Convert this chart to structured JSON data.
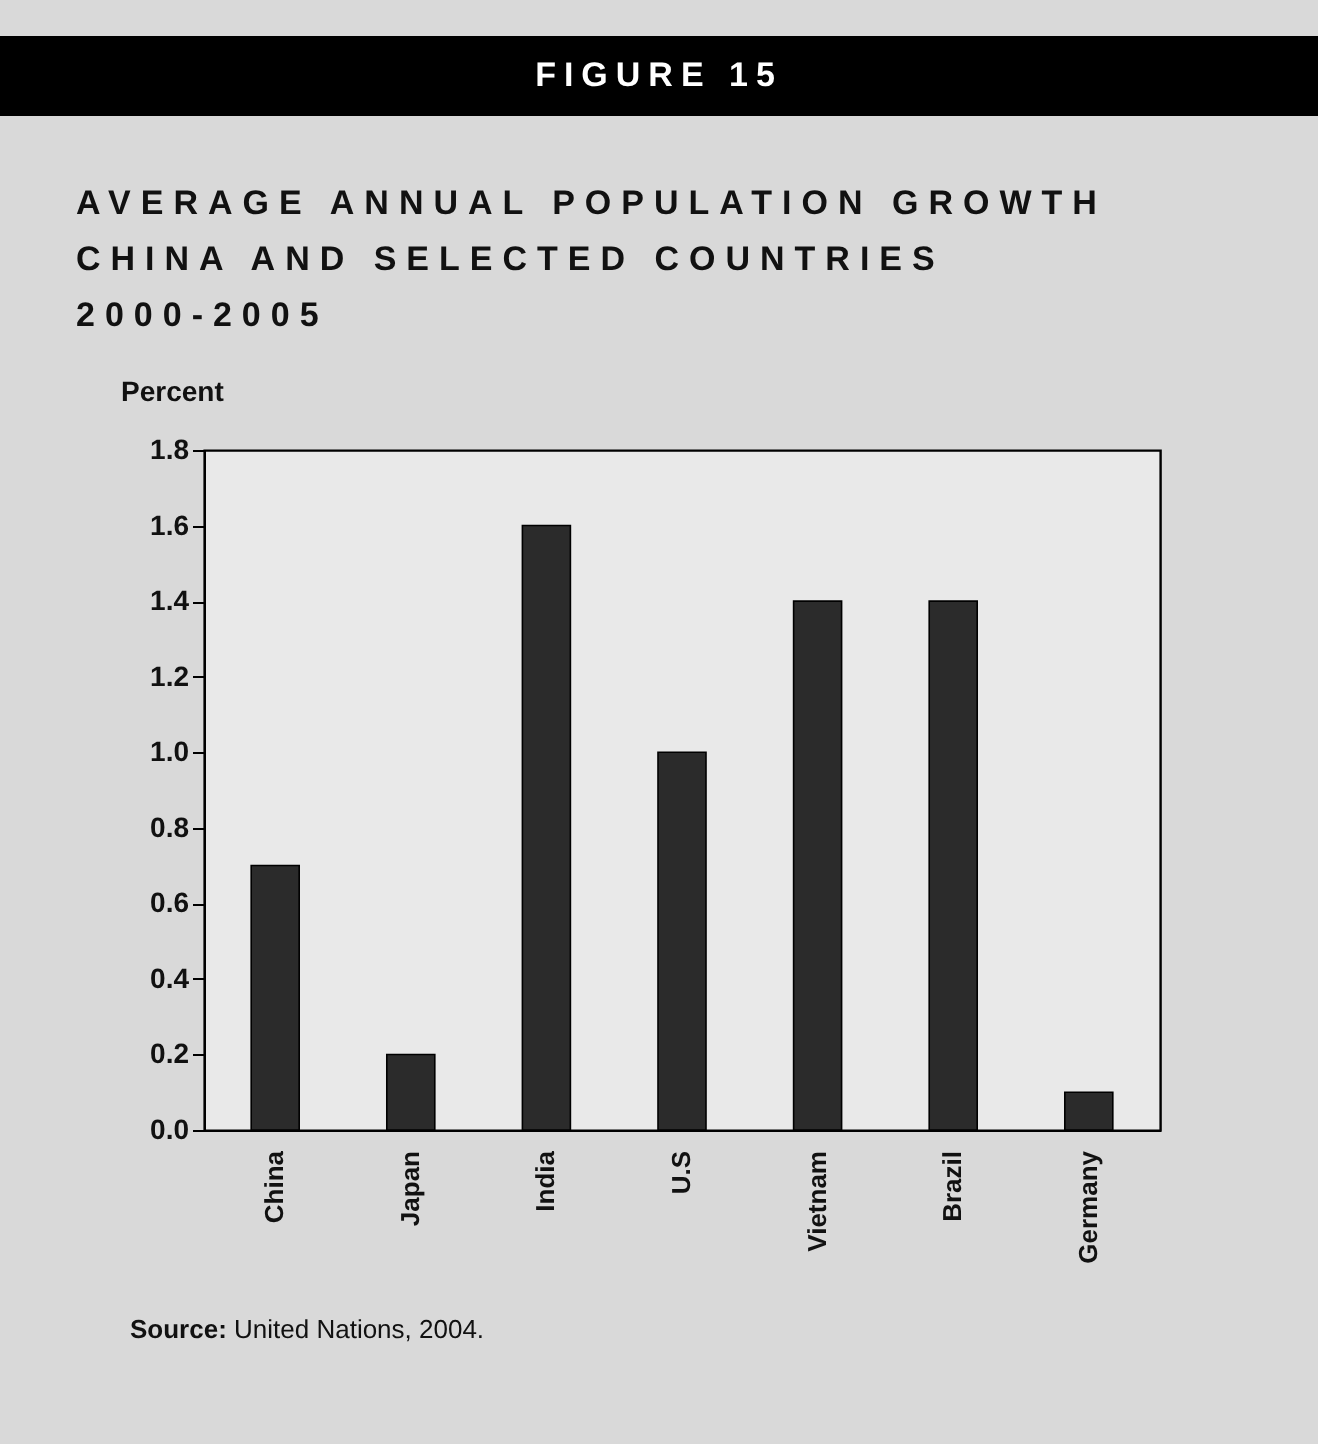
{
  "chart_data": {
    "type": "bar",
    "title": "AVERAGE ANNUAL POPULATION GROWTH\nCHINA AND SELECTED COUNTRIES\n2000-2005",
    "ylabel": "Percent",
    "annotations": [
      "FIGURE 15",
      "Source: United Nations, 2004."
    ],
    "categories": [
      "China",
      "Japan",
      "India",
      "U.S",
      "Vietnam",
      "Brazil",
      "Germany"
    ],
    "values": [
      0.7,
      0.2,
      1.6,
      1.0,
      1.4,
      1.4,
      0.1
    ],
    "color": "#2b2b2b",
    "ylim": [
      0,
      1.8
    ],
    "yticks": [
      {
        "value": 0,
        "label": "0.0"
      },
      0.2,
      0.4,
      0.6,
      0.8,
      {
        "value": 1,
        "label": "1.0"
      },
      1.2,
      1.4,
      1.6,
      1.8
    ],
    "grid": false
  }
}
